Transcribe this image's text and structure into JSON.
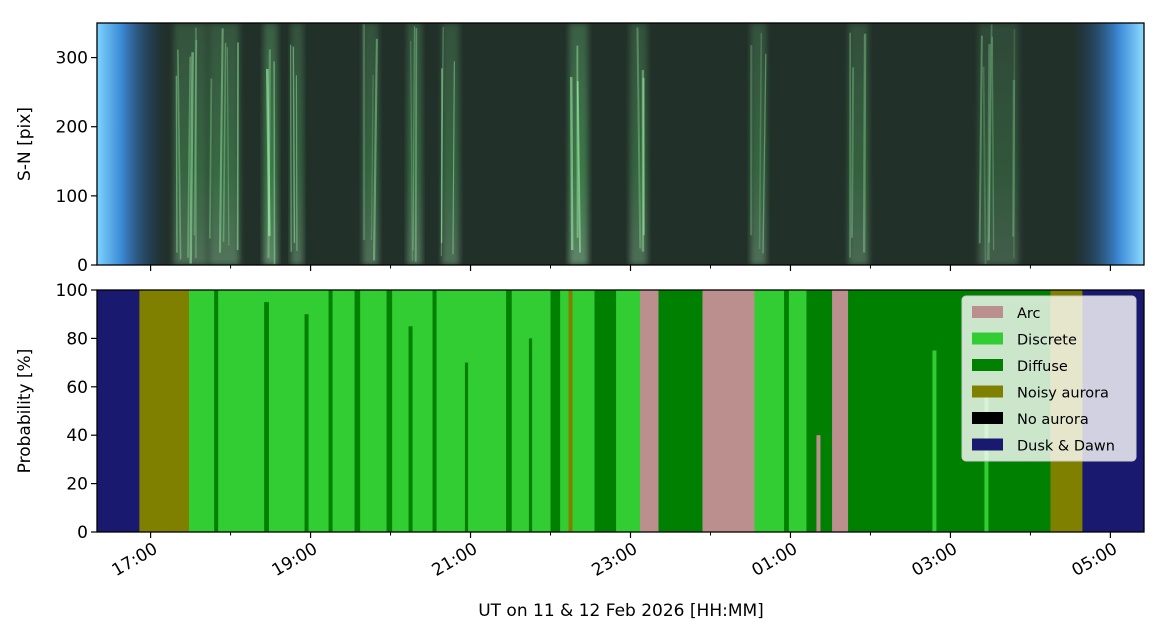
{
  "chart_data": [
    {
      "type": "heatmap",
      "title": "",
      "xlabel": "",
      "ylabel": "S-N [pix]",
      "ylim": [
        350,
        0
      ],
      "yticks": [
        "0",
        "100",
        "200",
        "300"
      ],
      "ytick_values": [
        0,
        100,
        200,
        300
      ],
      "image": "keogram (all-sky camera), green auroral emission, blue twilight at dusk and dawn",
      "colors": {
        "background": "#22302a",
        "twilight": "#4aa8f0",
        "aurora": "#7cff8c"
      },
      "bright_bands": [
        {
          "t": 0.5,
          "w": 0.42,
          "a": 0.55
        },
        {
          "t": 0.92,
          "w": 0.38,
          "a": 0.6
        },
        {
          "t": 1.5,
          "w": 0.18,
          "a": 0.75
        },
        {
          "t": 1.83,
          "w": 0.16,
          "a": 0.55
        },
        {
          "t": 2.75,
          "w": 0.2,
          "a": 0.55
        },
        {
          "t": 3.3,
          "w": 0.18,
          "a": 0.6
        },
        {
          "t": 3.75,
          "w": 0.22,
          "a": 0.55
        },
        {
          "t": 5.35,
          "w": 0.24,
          "a": 0.75
        },
        {
          "t": 6.1,
          "w": 0.22,
          "a": 0.55
        },
        {
          "t": 7.6,
          "w": 0.2,
          "a": 0.55
        },
        {
          "t": 8.85,
          "w": 0.25,
          "a": 0.5
        },
        {
          "t": 10.6,
          "w": 0.5,
          "a": 0.4
        }
      ]
    },
    {
      "type": "area",
      "title": "",
      "xlabel": "UT on 11 & 12 Feb 2026 [HH:MM]",
      "ylabel": "Probability [%]",
      "ylim": [
        0,
        100
      ],
      "yticks": [
        "0",
        "20",
        "40",
        "60",
        "80",
        "100"
      ],
      "ytick_values": [
        0,
        20,
        40,
        60,
        80,
        100
      ],
      "x_unit": "hours after 17:00 UT on 11 Feb 2026",
      "xlim": [
        -0.67,
        12.42
      ],
      "xticks": [
        "17:00",
        "19:00",
        "21:00",
        "23:00",
        "01:00",
        "03:00",
        "05:00"
      ],
      "xtick_values": [
        0,
        2,
        4,
        6,
        8,
        10,
        12
      ],
      "x_minor_ticks": [
        1,
        3,
        5,
        7,
        9,
        11
      ],
      "legend": {
        "placement": "upper right"
      },
      "series": [
        {
          "name": "Arc",
          "color": "#bc8f8f"
        },
        {
          "name": "Discrete",
          "color": "#32cd32"
        },
        {
          "name": "Diffuse",
          "color": "#008000"
        },
        {
          "name": "Noisy aurora",
          "color": "#808000"
        },
        {
          "name": "No aurora",
          "color": "#000000"
        },
        {
          "name": "Dusk & Dawn",
          "color": "#191970"
        }
      ],
      "intervals": [
        {
          "start": -0.67,
          "end": -0.14,
          "class": "Dusk & Dawn"
        },
        {
          "start": -0.14,
          "end": 0.48,
          "class": "Noisy aurora"
        },
        {
          "start": 0.48,
          "end": 2.55,
          "class": "Discrete"
        },
        {
          "start": 2.55,
          "end": 2.62,
          "class": "Diffuse"
        },
        {
          "start": 2.62,
          "end": 2.95,
          "class": "Discrete"
        },
        {
          "start": 2.95,
          "end": 3.02,
          "class": "Diffuse"
        },
        {
          "start": 3.02,
          "end": 5.0,
          "class": "Discrete"
        },
        {
          "start": 5.0,
          "end": 5.12,
          "class": "Diffuse"
        },
        {
          "start": 5.12,
          "end": 5.55,
          "class": "Discrete"
        },
        {
          "start": 5.55,
          "end": 5.82,
          "class": "Diffuse"
        },
        {
          "start": 5.82,
          "end": 6.12,
          "class": "Discrete"
        },
        {
          "start": 6.12,
          "end": 6.35,
          "class": "Arc"
        },
        {
          "start": 6.35,
          "end": 6.9,
          "class": "Diffuse"
        },
        {
          "start": 6.9,
          "end": 7.55,
          "class": "Arc"
        },
        {
          "start": 7.55,
          "end": 8.2,
          "class": "Discrete"
        },
        {
          "start": 8.2,
          "end": 8.52,
          "class": "Diffuse"
        },
        {
          "start": 8.52,
          "end": 8.72,
          "class": "Arc"
        },
        {
          "start": 8.72,
          "end": 11.25,
          "class": "Diffuse"
        },
        {
          "start": 11.25,
          "end": 11.65,
          "class": "Noisy aurora"
        },
        {
          "start": 11.65,
          "end": 12.42,
          "class": "Dusk & Dawn"
        }
      ],
      "stripes": [
        {
          "t": 0.82,
          "w": 0.05,
          "class": "Diffuse",
          "h": 100
        },
        {
          "t": 1.45,
          "w": 0.06,
          "class": "Diffuse",
          "h": 95
        },
        {
          "t": 1.95,
          "w": 0.05,
          "class": "Diffuse",
          "h": 90
        },
        {
          "t": 2.25,
          "w": 0.05,
          "class": "Diffuse",
          "h": 100
        },
        {
          "t": 3.25,
          "w": 0.05,
          "class": "Diffuse",
          "h": 85
        },
        {
          "t": 3.55,
          "w": 0.05,
          "class": "Diffuse",
          "h": 100
        },
        {
          "t": 3.95,
          "w": 0.04,
          "class": "Diffuse",
          "h": 70
        },
        {
          "t": 4.48,
          "w": 0.07,
          "class": "Diffuse",
          "h": 100
        },
        {
          "t": 4.75,
          "w": 0.04,
          "class": "Diffuse",
          "h": 80
        },
        {
          "t": 5.25,
          "w": 0.05,
          "class": "Noisy aurora",
          "h": 100
        },
        {
          "t": 7.95,
          "w": 0.06,
          "class": "Diffuse",
          "h": 100
        },
        {
          "t": 8.35,
          "w": 0.05,
          "class": "Arc",
          "h": 40
        },
        {
          "t": 9.8,
          "w": 0.05,
          "class": "Discrete",
          "h": 75
        },
        {
          "t": 10.45,
          "w": 0.05,
          "class": "Discrete",
          "h": 60
        }
      ]
    }
  ]
}
